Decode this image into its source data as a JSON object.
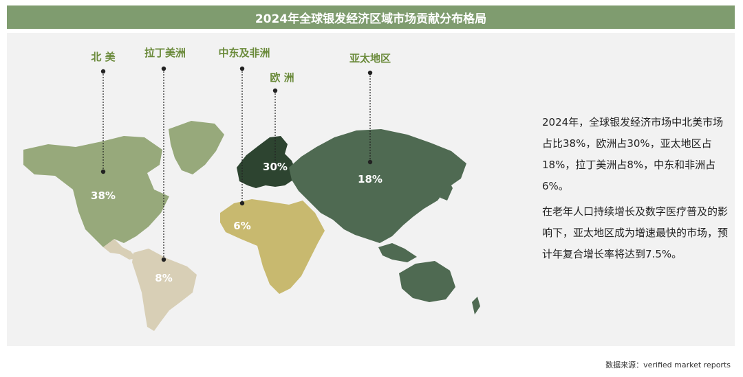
{
  "chart_data": {
    "type": "map",
    "title": "2024年全球银发经济区域市场贡献分布格局",
    "series": [
      {
        "region": "北 美",
        "value": 38,
        "label": "38%",
        "color": "#97a97b"
      },
      {
        "region": "欧 洲",
        "value": 30,
        "label": "30%",
        "color": "#2d4430"
      },
      {
        "region": "亚太地区",
        "value": 18,
        "label": "18%",
        "color": "#4f6a52"
      },
      {
        "region": "拉丁美洲",
        "value": 8,
        "label": "8%",
        "color": "#d8cfb6"
      },
      {
        "region": "中东及非洲",
        "value": 6,
        "label": "6%",
        "color": "#c8b96f"
      }
    ],
    "label_color": "#6a8a3a"
  },
  "description": {
    "para1": "2024年，全球银发经济市场中北美市场占比38%，欧洲占30%，亚太地区占18%，拉丁美洲占8%，中东和非洲占6%。",
    "para2": "在老年人口持续增长及数字医疗普及的影响下，亚太地区成为增速最快的市场，预计年复合增长率将达到7.5%。"
  },
  "source": "数据来源：verified market reports"
}
